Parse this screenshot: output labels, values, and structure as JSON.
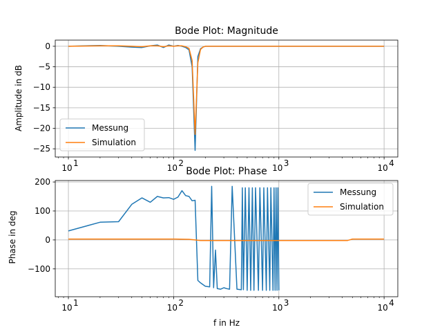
{
  "chart_data": [
    {
      "type": "line",
      "title": "Bode Plot: Magnitude",
      "xlabel": "",
      "ylabel": "Amplitude in dB",
      "xscale": "log",
      "xlim": [
        7.5,
        13500
      ],
      "ylim": [
        -27,
        1.5
      ],
      "xticks": [
        10,
        100,
        1000,
        10000
      ],
      "xtick_labels": [
        {
          "base": "10",
          "exp": "1"
        },
        {
          "base": "10",
          "exp": "2"
        },
        {
          "base": "10",
          "exp": "3"
        },
        {
          "base": "10",
          "exp": "4"
        }
      ],
      "yticks": [
        0,
        -5,
        -10,
        -15,
        -20,
        -25
      ],
      "ytick_labels": [
        "0",
        "−5",
        "−10",
        "−15",
        "−20",
        "−25"
      ],
      "grid": true,
      "legend": "lower-left",
      "series": [
        {
          "name": "Messung",
          "color": "#1f77b4",
          "x": [
            10,
            20,
            30,
            40,
            50,
            60,
            70,
            80,
            90,
            100,
            110,
            120,
            130,
            140,
            150,
            160,
            170,
            180,
            190,
            200,
            250,
            300,
            400,
            500,
            600,
            700,
            800,
            900,
            1000,
            2000,
            5000,
            10000
          ],
          "y": [
            0,
            0.2,
            0,
            -0.2,
            -0.3,
            0.1,
            0.3,
            -0.3,
            0.3,
            0,
            0.2,
            0,
            -0.3,
            -0.9,
            -5,
            -25.4,
            -2.5,
            -0.6,
            -0.2,
            0,
            0,
            0,
            0,
            0,
            0,
            0,
            0,
            0,
            0,
            0,
            0,
            0
          ]
        },
        {
          "name": "Simulation",
          "color": "#ff7f0e",
          "x": [
            10,
            20,
            30,
            40,
            50,
            60,
            70,
            80,
            90,
            100,
            110,
            120,
            130,
            140,
            150,
            160,
            170,
            180,
            190,
            200,
            300,
            500,
            1000,
            2000,
            5000,
            10000
          ],
          "y": [
            0,
            0.1,
            0.1,
            0,
            -0.1,
            0.1,
            0.1,
            -0.1,
            0.1,
            0,
            0.1,
            0.1,
            -0.1,
            -0.5,
            -3.5,
            -21.5,
            -4,
            -0.8,
            -0.2,
            0,
            0,
            0,
            0,
            0,
            0,
            0
          ]
        }
      ]
    },
    {
      "type": "line",
      "title": "Bode Plot: Phase",
      "xlabel": "f in Hz",
      "ylabel": "Phase in deg",
      "xscale": "log",
      "xlim": [
        7.5,
        13500
      ],
      "ylim": [
        -196,
        205
      ],
      "xticks": [
        10,
        100,
        1000,
        10000
      ],
      "xtick_labels": [
        {
          "base": "10",
          "exp": "1"
        },
        {
          "base": "10",
          "exp": "2"
        },
        {
          "base": "10",
          "exp": "3"
        },
        {
          "base": "10",
          "exp": "4"
        }
      ],
      "yticks": [
        200,
        100,
        0,
        -100
      ],
      "ytick_labels": [
        "200",
        "100",
        "0",
        "−100"
      ],
      "grid": true,
      "legend": "upper-right",
      "series": [
        {
          "name": "Messung",
          "color": "#1f77b4",
          "x": [
            10,
            20,
            30,
            40,
            50,
            60,
            70,
            80,
            90,
            100,
            110,
            120,
            130,
            140,
            150,
            160,
            170,
            180,
            200,
            220,
            230,
            240,
            250,
            260,
            280,
            300,
            320,
            340,
            360,
            400,
            440,
            450,
            460,
            480,
            500,
            520,
            540,
            560,
            580,
            600,
            640,
            660,
            700,
            720,
            760,
            780,
            820,
            840,
            880,
            900,
            920,
            940,
            960,
            980,
            1000
          ],
          "y": [
            31,
            61,
            63,
            123,
            145,
            130,
            150,
            145,
            146,
            140,
            148,
            170,
            153,
            150,
            135,
            137,
            -140,
            -148,
            -160,
            -162,
            185,
            -165,
            -35,
            -168,
            -170,
            -165,
            -168,
            -170,
            185,
            -170,
            -172,
            180,
            -172,
            180,
            -174,
            180,
            -174,
            180,
            -174,
            180,
            -174,
            180,
            -174,
            180,
            -174,
            180,
            -174,
            180,
            -174,
            180,
            -174,
            180,
            -174,
            180,
            -174
          ]
        },
        {
          "name": "Simulation",
          "color": "#ff7f0e",
          "x": [
            10,
            100,
            140,
            160,
            180,
            200,
            500,
            1000,
            2000,
            4500,
            5000,
            10000
          ],
          "y": [
            3,
            3,
            2,
            0,
            -2,
            -2,
            -2,
            -2,
            -2,
            -2,
            3,
            3
          ]
        }
      ]
    }
  ]
}
